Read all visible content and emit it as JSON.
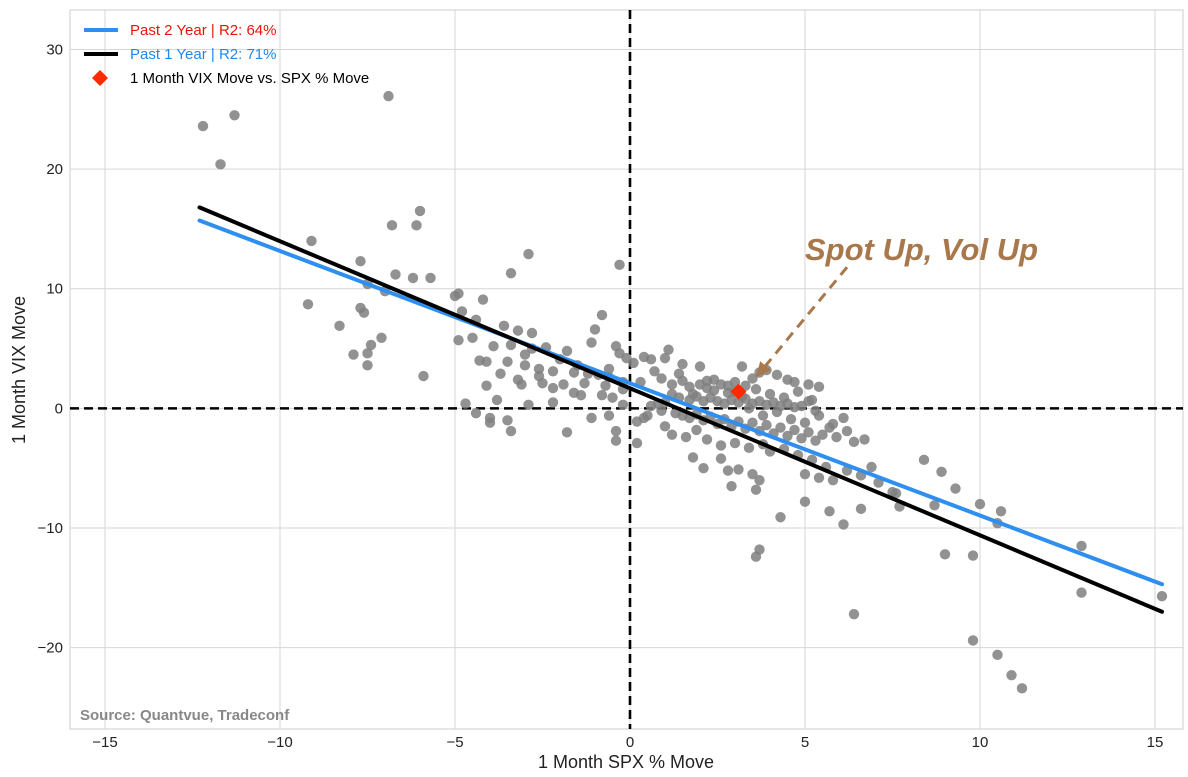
{
  "chart_data": {
    "type": "scatter",
    "xlabel": "1 Month SPX % Move",
    "ylabel": "1 Month VIX Move",
    "xlim": [
      -16,
      15.8
    ],
    "ylim": [
      -26.8,
      33.3
    ],
    "xticks": [
      -15,
      -10,
      -5,
      0,
      5,
      10,
      15
    ],
    "xtick_labels": [
      "−15",
      "−10",
      "−5",
      "0",
      "5",
      "10",
      "15"
    ],
    "yticks": [
      -20,
      -10,
      0,
      10,
      20,
      30
    ],
    "ytick_labels": [
      "−20",
      "−10",
      "0",
      "10",
      "20",
      "30"
    ],
    "grid": true,
    "legend_position": "top-left",
    "colors": {
      "scatter": "#7f7f7f",
      "fit_2y": "#2f8ff0",
      "fit_1y": "#000000",
      "highlight": "#ff2a00",
      "annotation": "#a8784a",
      "legend_red_text": "#e8150c",
      "legend_blue_text": "#1f88f0",
      "source_text": "#888888"
    },
    "series": [
      {
        "name": "1 Month VIX Move vs. SPX % Move (history)",
        "type": "scatter",
        "points": [
          [
            -12.2,
            23.6
          ],
          [
            -11.3,
            24.5
          ],
          [
            -11.7,
            20.4
          ],
          [
            -6.9,
            26.1
          ],
          [
            -6.0,
            16.5
          ],
          [
            -6.1,
            15.3
          ],
          [
            -6.8,
            15.3
          ],
          [
            -9.1,
            14.0
          ],
          [
            -7.7,
            12.3
          ],
          [
            -6.7,
            11.2
          ],
          [
            -6.2,
            10.9
          ],
          [
            -5.7,
            10.9
          ],
          [
            -9.2,
            8.7
          ],
          [
            -7.5,
            10.4
          ],
          [
            -7.0,
            9.8
          ],
          [
            -7.7,
            8.4
          ],
          [
            -7.6,
            8.0
          ],
          [
            -8.3,
            6.9
          ],
          [
            -7.1,
            5.9
          ],
          [
            -7.4,
            5.3
          ],
          [
            -7.9,
            4.5
          ],
          [
            -7.5,
            4.6
          ],
          [
            -7.5,
            3.6
          ],
          [
            -5.9,
            2.7
          ],
          [
            -5.0,
            9.4
          ],
          [
            -4.9,
            9.6
          ],
          [
            -4.8,
            8.1
          ],
          [
            -4.2,
            9.1
          ],
          [
            -4.4,
            7.4
          ],
          [
            -3.6,
            6.9
          ],
          [
            -3.2,
            6.5
          ],
          [
            -2.8,
            6.3
          ],
          [
            -2.9,
            12.9
          ],
          [
            -3.4,
            11.3
          ],
          [
            -4.9,
            5.7
          ],
          [
            -4.5,
            5.9
          ],
          [
            -3.9,
            5.2
          ],
          [
            -3.4,
            5.3
          ],
          [
            -2.8,
            5.0
          ],
          [
            -2.4,
            5.1
          ],
          [
            -1.8,
            4.8
          ],
          [
            -1.1,
            5.5
          ],
          [
            -1.0,
            6.6
          ],
          [
            -0.8,
            7.8
          ],
          [
            -0.4,
            5.2
          ],
          [
            -0.3,
            4.6
          ],
          [
            -0.1,
            4.2
          ],
          [
            0.1,
            3.8
          ],
          [
            0.4,
            4.3
          ],
          [
            0.6,
            4.1
          ],
          [
            1.0,
            4.2
          ],
          [
            1.1,
            4.9
          ],
          [
            1.5,
            3.7
          ],
          [
            -0.3,
            12.0
          ],
          [
            -4.3,
            4.0
          ],
          [
            -4.1,
            3.9
          ],
          [
            -3.5,
            3.9
          ],
          [
            -3.0,
            3.6
          ],
          [
            -2.6,
            3.3
          ],
          [
            -2.2,
            3.1
          ],
          [
            -1.6,
            3.0
          ],
          [
            -1.2,
            2.9
          ],
          [
            -0.9,
            2.8
          ],
          [
            -0.6,
            2.6
          ],
          [
            -3.7,
            2.9
          ],
          [
            -3.2,
            2.4
          ],
          [
            -2.5,
            2.1
          ],
          [
            -1.9,
            2.0
          ],
          [
            -1.3,
            2.1
          ],
          [
            -0.7,
            1.9
          ],
          [
            -0.2,
            1.6
          ],
          [
            -4.1,
            1.9
          ],
          [
            -3.1,
            2.0
          ],
          [
            -2.2,
            1.7
          ],
          [
            -1.6,
            1.3
          ],
          [
            -0.8,
            1.1
          ],
          [
            -3.8,
            0.7
          ],
          [
            -2.9,
            0.3
          ],
          [
            -2.2,
            0.5
          ],
          [
            -4.7,
            0.4
          ],
          [
            -4.4,
            -0.4
          ],
          [
            -4.0,
            -0.8
          ],
          [
            -4.0,
            -1.2
          ],
          [
            -3.5,
            -1.0
          ],
          [
            -3.4,
            -1.9
          ],
          [
            -1.8,
            -2.0
          ],
          [
            -1.1,
            -0.8
          ],
          [
            -0.6,
            -0.6
          ],
          [
            -0.4,
            -1.9
          ],
          [
            -0.4,
            -2.7
          ],
          [
            0.2,
            -2.9
          ],
          [
            0.2,
            -1.1
          ],
          [
            0.5,
            -0.6
          ],
          [
            0.6,
            0.2
          ],
          [
            0.8,
            0.4
          ],
          [
            1.0,
            0.5
          ],
          [
            0.3,
            2.2
          ],
          [
            0.9,
            2.5
          ],
          [
            1.2,
            2.0
          ],
          [
            1.5,
            2.3
          ],
          [
            1.7,
            1.8
          ],
          [
            2.0,
            2.0
          ],
          [
            2.2,
            2.3
          ],
          [
            2.4,
            2.4
          ],
          [
            2.6,
            2.0
          ],
          [
            2.8,
            1.9
          ],
          [
            3.0,
            2.2
          ],
          [
            3.3,
            1.9
          ],
          [
            3.5,
            2.5
          ],
          [
            3.7,
            3.0
          ],
          [
            3.9,
            3.2
          ],
          [
            4.2,
            2.8
          ],
          [
            4.5,
            2.4
          ],
          [
            4.7,
            2.2
          ],
          [
            5.1,
            2.0
          ],
          [
            5.4,
            1.8
          ],
          [
            3.2,
            3.5
          ],
          [
            1.2,
            1.2
          ],
          [
            1.4,
            0.9
          ],
          [
            1.7,
            0.7
          ],
          [
            1.9,
            1.0
          ],
          [
            2.1,
            0.6
          ],
          [
            2.3,
            0.9
          ],
          [
            2.5,
            0.6
          ],
          [
            2.7,
            0.4
          ],
          [
            2.9,
            0.7
          ],
          [
            3.1,
            0.5
          ],
          [
            3.3,
            0.8
          ],
          [
            3.5,
            0.4
          ],
          [
            3.7,
            0.6
          ],
          [
            3.9,
            0.3
          ],
          [
            4.1,
            0.5
          ],
          [
            4.3,
            0.2
          ],
          [
            4.5,
            0.4
          ],
          [
            4.7,
            0.1
          ],
          [
            4.9,
            0.2
          ],
          [
            5.1,
            0.6
          ],
          [
            5.3,
            -0.2
          ],
          [
            1.3,
            -0.4
          ],
          [
            1.5,
            -0.6
          ],
          [
            1.7,
            -0.8
          ],
          [
            1.9,
            -0.5
          ],
          [
            2.1,
            -1.0
          ],
          [
            2.3,
            -0.7
          ],
          [
            2.5,
            -1.3
          ],
          [
            2.7,
            -0.9
          ],
          [
            2.9,
            -1.5
          ],
          [
            3.1,
            -1.1
          ],
          [
            3.3,
            -1.7
          ],
          [
            3.5,
            -1.2
          ],
          [
            3.7,
            -1.9
          ],
          [
            3.9,
            -1.4
          ],
          [
            4.1,
            -2.1
          ],
          [
            4.3,
            -1.6
          ],
          [
            4.5,
            -2.3
          ],
          [
            4.7,
            -1.8
          ],
          [
            4.9,
            -2.5
          ],
          [
            5.1,
            -2.0
          ],
          [
            5.3,
            -2.7
          ],
          [
            5.5,
            -2.2
          ],
          [
            5.7,
            -1.6
          ],
          [
            5.9,
            -2.4
          ],
          [
            6.1,
            -0.8
          ],
          [
            6.4,
            -2.8
          ],
          [
            6.7,
            -2.6
          ],
          [
            1.0,
            -1.5
          ],
          [
            1.2,
            -2.2
          ],
          [
            1.6,
            -2.4
          ],
          [
            1.9,
            -1.8
          ],
          [
            2.2,
            -2.6
          ],
          [
            2.6,
            -3.1
          ],
          [
            3.0,
            -2.9
          ],
          [
            3.4,
            -3.3
          ],
          [
            3.8,
            -3.0
          ],
          [
            4.0,
            -3.6
          ],
          [
            4.4,
            -3.4
          ],
          [
            4.8,
            -3.9
          ],
          [
            5.2,
            -4.3
          ],
          [
            5.6,
            -4.9
          ],
          [
            5.0,
            -5.5
          ],
          [
            5.4,
            -5.8
          ],
          [
            5.8,
            -6.0
          ],
          [
            6.2,
            -5.2
          ],
          [
            6.6,
            -5.6
          ],
          [
            6.9,
            -4.9
          ],
          [
            7.1,
            -6.2
          ],
          [
            7.6,
            -7.1
          ],
          [
            1.8,
            -4.1
          ],
          [
            2.1,
            -5.0
          ],
          [
            2.6,
            -4.2
          ],
          [
            2.8,
            -5.2
          ],
          [
            3.1,
            -5.1
          ],
          [
            3.5,
            -5.5
          ],
          [
            3.7,
            -6.0
          ],
          [
            3.6,
            -6.8
          ],
          [
            2.9,
            -6.5
          ],
          [
            4.3,
            -9.1
          ],
          [
            5.7,
            -8.6
          ],
          [
            6.1,
            -9.7
          ],
          [
            6.6,
            -8.4
          ],
          [
            5.0,
            -7.8
          ],
          [
            3.7,
            -11.8
          ],
          [
            3.6,
            -12.4
          ],
          [
            6.4,
            -17.2
          ],
          [
            7.5,
            -7.0
          ],
          [
            7.7,
            -8.2
          ],
          [
            8.4,
            -4.3
          ],
          [
            8.7,
            -8.1
          ],
          [
            8.9,
            -5.3
          ],
          [
            9.3,
            -6.7
          ],
          [
            9.0,
            -12.2
          ],
          [
            9.8,
            -12.3
          ],
          [
            10.0,
            -8.0
          ],
          [
            10.5,
            -9.6
          ],
          [
            10.6,
            -8.6
          ],
          [
            9.8,
            -19.4
          ],
          [
            10.5,
            -20.6
          ],
          [
            10.9,
            -22.3
          ],
          [
            11.2,
            -23.4
          ],
          [
            12.9,
            -11.5
          ],
          [
            12.9,
            -15.4
          ],
          [
            15.2,
            -15.7
          ],
          [
            1.4,
            2.9
          ],
          [
            0.7,
            3.1
          ],
          [
            2.0,
            3.5
          ],
          [
            2.4,
            1.5
          ],
          [
            2.8,
            1.3
          ],
          [
            3.2,
            1.0
          ],
          [
            3.6,
            1.6
          ],
          [
            4.0,
            1.2
          ],
          [
            4.4,
            0.9
          ],
          [
            4.8,
            1.4
          ],
          [
            5.2,
            0.7
          ],
          [
            0.9,
            -0.2
          ],
          [
            0.4,
            -0.8
          ],
          [
            -0.2,
            0.3
          ],
          [
            -0.5,
            0.9
          ],
          [
            -1.4,
            1.1
          ],
          [
            -2.6,
            2.7
          ],
          [
            -3.0,
            4.5
          ],
          [
            -2.0,
            4.1
          ],
          [
            -1.5,
            3.6
          ],
          [
            -0.6,
            3.3
          ],
          [
            -0.2,
            2.2
          ],
          [
            1.8,
            1.2
          ],
          [
            2.2,
            1.7
          ],
          [
            3.0,
            1.4
          ],
          [
            3.4,
            0.0
          ],
          [
            3.8,
            -0.6
          ],
          [
            4.2,
            -0.3
          ],
          [
            4.6,
            -0.9
          ],
          [
            5.0,
            -1.2
          ],
          [
            5.4,
            -0.6
          ],
          [
            5.8,
            -1.3
          ],
          [
            6.2,
            -1.9
          ]
        ]
      },
      {
        "name": "Past 2 Year | R2: 64%",
        "type": "line",
        "x": [
          -12.3,
          15.2
        ],
        "y": [
          15.7,
          -14.7
        ]
      },
      {
        "name": "Past 1 Year | R2: 71%",
        "type": "line",
        "x": [
          -12.3,
          15.2
        ],
        "y": [
          16.8,
          -17.0
        ]
      },
      {
        "name": "1 Month VIX Move vs. SPX % Move",
        "type": "highlight",
        "points": [
          [
            3.1,
            1.4
          ]
        ]
      }
    ],
    "legend": [
      {
        "label": "Past 2 Year | R2: 64%",
        "marker": "line",
        "marker_color": "#2f8ff0",
        "text_color": "#e8150c"
      },
      {
        "label": "Past 1 Year | R2: 71%",
        "marker": "line",
        "marker_color": "#000000",
        "text_color": "#1f88f0"
      },
      {
        "label": "1 Month VIX Move vs. SPX % Move",
        "marker": "diamond",
        "marker_color": "#ff2a00",
        "text_color": "#000000"
      }
    ],
    "annotation": {
      "text": "Spot Up, Vol Up",
      "text_anchor": [
        5.0,
        12.4
      ],
      "arrow_from": [
        6.2,
        11.8
      ],
      "arrow_to": [
        3.6,
        2.6
      ]
    },
    "source": "Source: Quantvue, Tradeconf"
  }
}
